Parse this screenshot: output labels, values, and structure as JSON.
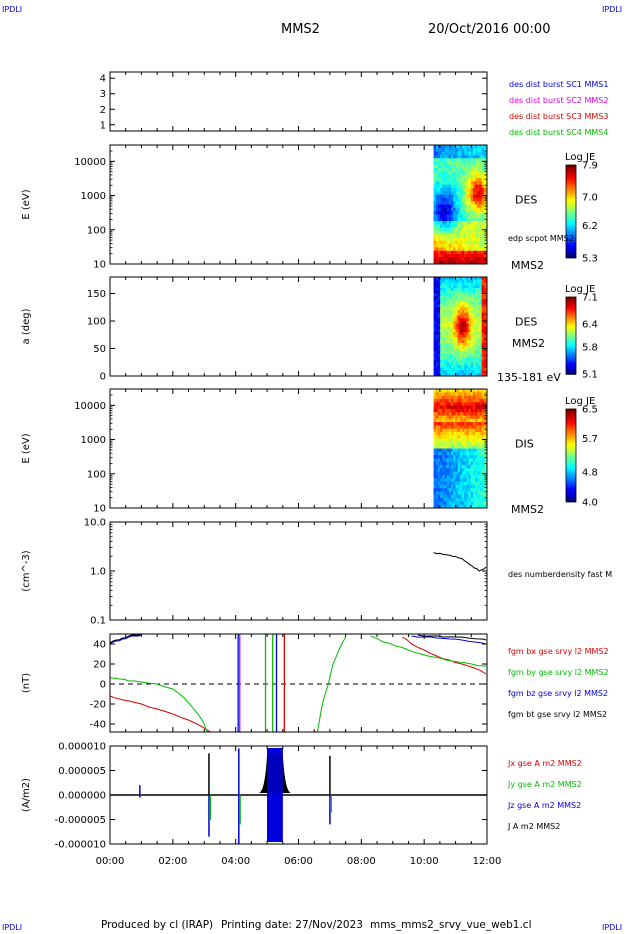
{
  "corner_labels": {
    "tl": "IPDLI",
    "tr": "IPDLI",
    "bl": "IPDLI",
    "br": "IPDLI"
  },
  "header": {
    "title": "MMS2",
    "date": "20/Oct/2016 00:00"
  },
  "footer": {
    "produced_by": "Produced by cl (IRAP)",
    "printing_date": "Printing date: 27/Nov/2023",
    "file": "mms_mms2_srvy_vue_web1.cl"
  },
  "colors": {
    "blue": "#0000dd",
    "magenta": "#dd00dd",
    "red": "#dd0000",
    "green": "#00bb00",
    "black": "#000000"
  },
  "chart_data": [
    {
      "id": "p1",
      "type": "line",
      "ylim": [
        0.6,
        4.4
      ],
      "y_ticks": [
        {
          "v": 1,
          "label": "1"
        },
        {
          "v": 2,
          "label": "2"
        },
        {
          "v": 3,
          "label": "3"
        },
        {
          "v": 4,
          "label": "4"
        }
      ],
      "legend": [
        {
          "text": "des dist burst SC1 MMS1",
          "color": "#0000dd"
        },
        {
          "text": "des dist burst SC2 MMS2",
          "color": "#dd00dd"
        },
        {
          "text": "des dist burst SC3 MMS3",
          "color": "#dd0000"
        },
        {
          "text": "des dist burst SC4 MMS4",
          "color": "#00bb00"
        }
      ]
    },
    {
      "id": "p2",
      "type": "heatmap",
      "ylabel": "E (eV)",
      "log": true,
      "ylim": [
        10,
        30000
      ],
      "y_ticks": [
        {
          "v": 10,
          "label": "10"
        },
        {
          "v": 100,
          "label": "100"
        },
        {
          "v": 1000,
          "label": "1000"
        },
        {
          "v": 10000,
          "label": "10000"
        }
      ],
      "x_start": 10.3,
      "x_end": 11.97,
      "label": "DES",
      "label2": "edp scpot MMS2",
      "label3": "MMS2",
      "colorbar": {
        "title": "Log JE",
        "ticks": [
          {
            "v": 7.9,
            "label": "7.9"
          },
          {
            "v": 7.0,
            "label": "7.0"
          },
          {
            "v": 6.2,
            "label": "6.2"
          },
          {
            "v": 5.3,
            "label": "5.3"
          }
        ],
        "min": 5.3,
        "max": 7.9
      }
    },
    {
      "id": "p3",
      "type": "heatmap",
      "ylabel": "a (deg)",
      "log": false,
      "ylim": [
        0,
        180
      ],
      "y_ticks": [
        {
          "v": 0,
          "label": "0"
        },
        {
          "v": 50,
          "label": "50"
        },
        {
          "v": 100,
          "label": "100"
        },
        {
          "v": 150,
          "label": "150"
        }
      ],
      "x_start": 10.3,
      "x_end": 11.97,
      "label": "DES",
      "label2": "MMS2",
      "label3": "135-181 eV",
      "colorbar": {
        "title": "Log JE",
        "ticks": [
          {
            "v": 7.1,
            "label": "7.1"
          },
          {
            "v": 6.4,
            "label": "6.4"
          },
          {
            "v": 5.8,
            "label": "5.8"
          },
          {
            "v": 5.1,
            "label": "5.1"
          }
        ],
        "min": 5.1,
        "max": 7.1
      }
    },
    {
      "id": "p4",
      "type": "heatmap",
      "ylabel": "E (eV)",
      "log": true,
      "ylim": [
        10,
        30000
      ],
      "y_ticks": [
        {
          "v": 10,
          "label": "10"
        },
        {
          "v": 100,
          "label": "100"
        },
        {
          "v": 1000,
          "label": "1000"
        },
        {
          "v": 10000,
          "label": "10000"
        }
      ],
      "x_start": 10.3,
      "x_end": 11.97,
      "label": "DIS",
      "label3": "MMS2",
      "colorbar": {
        "title": "Log JE",
        "ticks": [
          {
            "v": 6.5,
            "label": "6.5"
          },
          {
            "v": 5.7,
            "label": "5.7"
          },
          {
            "v": 4.8,
            "label": "4.8"
          },
          {
            "v": 4.0,
            "label": "4.0"
          }
        ],
        "min": 4.0,
        "max": 6.5
      }
    },
    {
      "id": "p5",
      "type": "line",
      "ylabel": "(cm^-3)",
      "log": true,
      "ylim": [
        0.1,
        10
      ],
      "y_ticks": [
        {
          "v": 0.1,
          "label": "0.1"
        },
        {
          "v": 1,
          "label": "1.0"
        },
        {
          "v": 10,
          "label": "10.0"
        }
      ],
      "legend": [
        {
          "text": "des numberdensity fast M",
          "color": "#000000"
        }
      ],
      "series": [
        {
          "x": [
            10.3,
            10.5,
            10.7,
            10.9,
            11.1,
            11.3,
            11.45,
            11.6,
            11.75,
            11.9,
            11.97
          ],
          "y": [
            2.4,
            2.3,
            2.15,
            2.0,
            1.85,
            1.6,
            1.35,
            1.15,
            1.0,
            1.1,
            1.2
          ],
          "color": "#000000"
        }
      ]
    },
    {
      "id": "p6",
      "type": "line",
      "ylabel": "(nT)",
      "ylim": [
        -48,
        50
      ],
      "y_ticks": [
        {
          "v": -40,
          "label": "-40"
        },
        {
          "v": -20,
          "label": "-20"
        },
        {
          "v": 0,
          "label": "0"
        },
        {
          "v": 20,
          "label": "20"
        },
        {
          "v": 40,
          "label": "40"
        }
      ],
      "zero_line": true,
      "legend": [
        {
          "text": "fgm bx gse srvy l2 MMS2",
          "color": "#dd0000"
        },
        {
          "text": "fgm by gse srvy l2 MMS2",
          "color": "#00bb00"
        },
        {
          "text": "fgm bz gse srvy l2 MMS2",
          "color": "#0000dd"
        },
        {
          "text": "fgm bt gse srvy l2 MMS2",
          "color": "#000000"
        }
      ],
      "series": [
        {
          "name": "bx",
          "color": "#dd0000",
          "segments": [
            {
              "x": [
                0,
                0.3,
                0.6,
                1.0,
                1.5,
                2.0,
                2.5,
                2.9,
                3.2
              ],
              "y": [
                -12,
                -15,
                -17,
                -20,
                -25,
                -30,
                -36,
                -42,
                -48
              ]
            },
            {
              "x": [
                9.3,
                9.6,
                10.0,
                10.4,
                10.8,
                11.2,
                11.6,
                11.97
              ],
              "y": [
                47,
                40,
                34,
                28,
                24,
                20,
                16,
                10
              ]
            }
          ]
        },
        {
          "name": "by",
          "color": "#00bb00",
          "segments": [
            {
              "x": [
                0,
                0.3,
                0.6,
                1.0,
                1.5,
                2.0,
                2.4,
                2.8,
                3.0,
                3.1
              ],
              "y": [
                6,
                5,
                3,
                2,
                0,
                -5,
                -15,
                -30,
                -40,
                -48
              ]
            },
            {
              "x": [
                6.6,
                6.7,
                6.8,
                6.95,
                7.1,
                7.3,
                7.5
              ],
              "y": [
                -48,
                -30,
                -15,
                0,
                20,
                35,
                47
              ]
            },
            {
              "x": [
                8.3,
                8.7,
                9.1,
                9.5,
                9.9,
                10.3,
                10.7,
                11.1,
                11.5,
                11.97
              ],
              "y": [
                48,
                42,
                38,
                34,
                30,
                27,
                24,
                22,
                20,
                18
              ]
            }
          ]
        },
        {
          "name": "bz",
          "color": "#0000dd",
          "segments": [
            {
              "x": [
                0,
                0.2,
                0.4,
                0.6,
                0.8,
                1.0
              ],
              "y": [
                40,
                43,
                45,
                47,
                48,
                49
              ]
            },
            {
              "x": [
                9.6,
                10.0,
                10.4,
                10.8,
                11.2,
                11.6,
                11.97
              ],
              "y": [
                48,
                47,
                46,
                45,
                44,
                42,
                40
              ]
            }
          ]
        },
        {
          "name": "bt",
          "color": "#000000",
          "segments": [
            {
              "x": [
                0,
                0.2,
                0.4,
                0.6,
                0.8,
                1.0
              ],
              "y": [
                41,
                44,
                46,
                48,
                49,
                50
              ]
            },
            {
              "x": [
                9.8,
                10.2,
                10.6,
                11.0,
                11.4,
                11.8,
                11.97
              ],
              "y": [
                49,
                48,
                47,
                47,
                46,
                45,
                44
              ]
            }
          ]
        }
      ],
      "vlines": [
        {
          "x": 4.08,
          "color": "#0000dd"
        },
        {
          "x": 4.13,
          "color": "#dd00dd"
        },
        {
          "x": 4.95,
          "color": "#00bb00"
        },
        {
          "x": 5.18,
          "color": "#00bb00"
        },
        {
          "x": 5.3,
          "color": "#0000dd"
        },
        {
          "x": 5.55,
          "color": "#dd0000"
        }
      ]
    },
    {
      "id": "p7",
      "type": "line",
      "ylabel": "(A/m2)",
      "ylim": [
        -1e-05,
        1e-05
      ],
      "y_ticks": [
        {
          "v": -1e-05,
          "label": "-0.000010"
        },
        {
          "v": -5e-06,
          "label": "-0.000005"
        },
        {
          "v": 0,
          "label": "0.000000"
        },
        {
          "v": 5e-06,
          "label": "0.000005"
        },
        {
          "v": 1e-05,
          "label": "0.000010"
        }
      ],
      "legend": [
        {
          "text": "Jx gse A m2 MMS2",
          "color": "#dd0000"
        },
        {
          "text": "Jy gse A m2 MMS2",
          "color": "#00bb00"
        },
        {
          "text": "Jz gse A m2 MMS2",
          "color": "#0000dd"
        },
        {
          "text": "J A m2 MMS2",
          "color": "#000000"
        }
      ],
      "spikes": [
        {
          "x": 0.95,
          "pos": 2e-06,
          "neg": -5e-07,
          "color": "#0000dd"
        },
        {
          "x": 3.15,
          "pos": 8.5e-06,
          "neg": -8.5e-06,
          "color": "#000000"
        },
        {
          "x": 4.1,
          "pos": 9.5e-06,
          "neg": -1e-05,
          "color": "#0000dd"
        },
        {
          "x": 7.0,
          "pos": 8e-06,
          "neg": -6e-06,
          "color": "#000000"
        }
      ],
      "block": {
        "x0": 5.0,
        "x1": 5.5,
        "color": "#0000dd"
      },
      "x_ticks": [
        {
          "v": 0,
          "label": "00:00"
        },
        {
          "v": 2,
          "label": "02:00"
        },
        {
          "v": 4,
          "label": "04:00"
        },
        {
          "v": 6,
          "label": "06:00"
        },
        {
          "v": 8,
          "label": "08:00"
        },
        {
          "v": 10,
          "label": "10:00"
        },
        {
          "v": 12,
          "label": "12:00"
        }
      ],
      "xlim": [
        0,
        12
      ]
    }
  ]
}
